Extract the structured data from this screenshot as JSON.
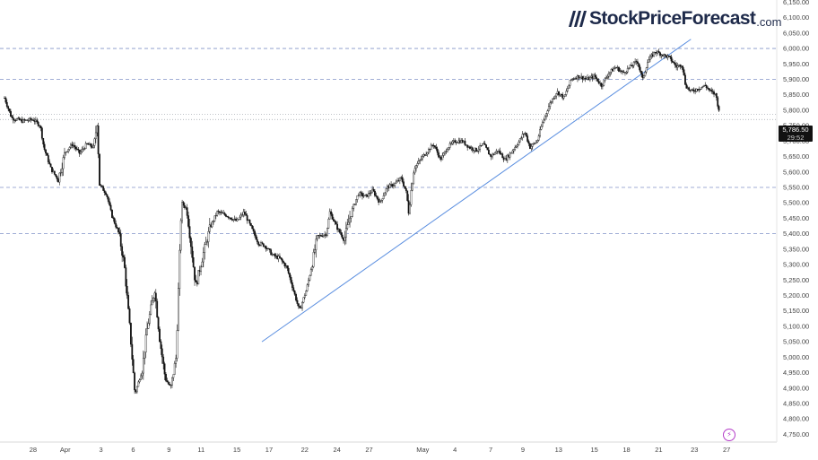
{
  "brand": {
    "name": "StockPriceForecast",
    "tld": ".com"
  },
  "colors": {
    "candle": "#111111",
    "trendline": "#5b8fe0",
    "level_dash": "#8294c8",
    "dotted": "#9aa0a8",
    "price_box": "#111111",
    "accent_icon": "#b43cc8"
  },
  "icons": {
    "logo": "bar-slashes-icon",
    "bolt": "lightning-icon"
  },
  "current_price": {
    "label": "5,786.50",
    "countdown": "29:52"
  },
  "chart_data": {
    "type": "candlestick",
    "title": "",
    "ylim": [
      4725,
      6175
    ],
    "y_ticks": [
      "6,150.00",
      "6,100.00",
      "6,050.00",
      "6,000.00",
      "5,950.00",
      "5,900.00",
      "5,850.00",
      "5,800.00",
      "5,750.00",
      "5,700.00",
      "5,650.00",
      "5,600.00",
      "5,550.00",
      "5,500.00",
      "5,450.00",
      "5,400.00",
      "5,350.00",
      "5,300.00",
      "5,250.00",
      "5,200.00",
      "5,150.00",
      "5,100.00",
      "5,050.00",
      "5,000.00",
      "4,950.00",
      "4,900.00",
      "4,850.00",
      "4,800.00",
      "4,750.00"
    ],
    "x_ticks": [
      {
        "label": "28",
        "t": 0.8
      },
      {
        "label": "Apr",
        "t": 1.7
      },
      {
        "label": "3",
        "t": 2.7
      },
      {
        "label": "6",
        "t": 3.6
      },
      {
        "label": "9",
        "t": 4.6
      },
      {
        "label": "11",
        "t": 5.5
      },
      {
        "label": "15",
        "t": 6.5
      },
      {
        "label": "17",
        "t": 7.4
      },
      {
        "label": "22",
        "t": 8.4
      },
      {
        "label": "24",
        "t": 9.3
      },
      {
        "label": "27",
        "t": 10.2
      },
      {
        "label": "May",
        "t": 11.7
      },
      {
        "label": "4",
        "t": 12.6
      },
      {
        "label": "7",
        "t": 13.6
      },
      {
        "label": "9",
        "t": 14.5
      },
      {
        "label": "13",
        "t": 15.5
      },
      {
        "label": "15",
        "t": 16.5
      },
      {
        "label": "18",
        "t": 17.4
      },
      {
        "label": "21",
        "t": 18.3
      },
      {
        "label": "23",
        "t": 19.3
      },
      {
        "label": "27",
        "t": 20.2
      }
    ],
    "t_range": [
      -0.1,
      21.4
    ],
    "horizontal_levels": [
      6000,
      5900,
      5550,
      5400
    ],
    "dotted_levels": [
      5786.5,
      5770
    ],
    "trendline": {
      "from": {
        "t": 7.2,
        "y": 5050
      },
      "to": {
        "t": 19.2,
        "y": 6030
      }
    },
    "price_path": [
      {
        "t": 0.0,
        "y": 5840
      },
      {
        "t": 0.2,
        "y": 5775
      },
      {
        "t": 0.5,
        "y": 5765
      },
      {
        "t": 0.8,
        "y": 5770
      },
      {
        "t": 1.0,
        "y": 5750
      },
      {
        "t": 1.1,
        "y": 5680
      },
      {
        "t": 1.3,
        "y": 5610
      },
      {
        "t": 1.5,
        "y": 5575
      },
      {
        "t": 1.7,
        "y": 5665
      },
      {
        "t": 1.9,
        "y": 5690
      },
      {
        "t": 2.1,
        "y": 5660
      },
      {
        "t": 2.3,
        "y": 5690
      },
      {
        "t": 2.5,
        "y": 5680
      },
      {
        "t": 2.6,
        "y": 5770
      },
      {
        "t": 2.65,
        "y": 5560
      },
      {
        "t": 2.85,
        "y": 5530
      },
      {
        "t": 3.0,
        "y": 5460
      },
      {
        "t": 3.2,
        "y": 5400
      },
      {
        "t": 3.35,
        "y": 5300
      },
      {
        "t": 3.5,
        "y": 5100
      },
      {
        "t": 3.65,
        "y": 4880
      },
      {
        "t": 3.85,
        "y": 4960
      },
      {
        "t": 4.0,
        "y": 5100
      },
      {
        "t": 4.2,
        "y": 5220
      },
      {
        "t": 4.35,
        "y": 5050
      },
      {
        "t": 4.5,
        "y": 4930
      },
      {
        "t": 4.65,
        "y": 4900
      },
      {
        "t": 4.8,
        "y": 5000
      },
      {
        "t": 4.95,
        "y": 5500
      },
      {
        "t": 5.1,
        "y": 5480
      },
      {
        "t": 5.2,
        "y": 5380
      },
      {
        "t": 5.35,
        "y": 5230
      },
      {
        "t": 5.55,
        "y": 5330
      },
      {
        "t": 5.75,
        "y": 5420
      },
      {
        "t": 5.95,
        "y": 5470
      },
      {
        "t": 6.2,
        "y": 5460
      },
      {
        "t": 6.5,
        "y": 5440
      },
      {
        "t": 6.7,
        "y": 5470
      },
      {
        "t": 6.9,
        "y": 5420
      },
      {
        "t": 7.1,
        "y": 5370
      },
      {
        "t": 7.3,
        "y": 5360
      },
      {
        "t": 7.5,
        "y": 5330
      },
      {
        "t": 7.7,
        "y": 5320
      },
      {
        "t": 7.9,
        "y": 5290
      },
      {
        "t": 8.05,
        "y": 5230
      },
      {
        "t": 8.25,
        "y": 5150
      },
      {
        "t": 8.45,
        "y": 5220
      },
      {
        "t": 8.6,
        "y": 5300
      },
      {
        "t": 8.75,
        "y": 5390
      },
      {
        "t": 9.0,
        "y": 5400
      },
      {
        "t": 9.1,
        "y": 5470
      },
      {
        "t": 9.3,
        "y": 5420
      },
      {
        "t": 9.5,
        "y": 5380
      },
      {
        "t": 9.7,
        "y": 5470
      },
      {
        "t": 9.9,
        "y": 5530
      },
      {
        "t": 10.1,
        "y": 5520
      },
      {
        "t": 10.3,
        "y": 5540
      },
      {
        "t": 10.5,
        "y": 5500
      },
      {
        "t": 10.7,
        "y": 5550
      },
      {
        "t": 10.9,
        "y": 5560
      },
      {
        "t": 11.1,
        "y": 5580
      },
      {
        "t": 11.25,
        "y": 5530
      },
      {
        "t": 11.3,
        "y": 5470
      },
      {
        "t": 11.45,
        "y": 5610
      },
      {
        "t": 11.7,
        "y": 5650
      },
      {
        "t": 12.0,
        "y": 5690
      },
      {
        "t": 12.2,
        "y": 5640
      },
      {
        "t": 12.4,
        "y": 5680
      },
      {
        "t": 12.6,
        "y": 5700
      },
      {
        "t": 12.8,
        "y": 5700
      },
      {
        "t": 13.0,
        "y": 5680
      },
      {
        "t": 13.2,
        "y": 5670
      },
      {
        "t": 13.4,
        "y": 5690
      },
      {
        "t": 13.6,
        "y": 5650
      },
      {
        "t": 13.8,
        "y": 5670
      },
      {
        "t": 14.0,
        "y": 5640
      },
      {
        "t": 14.15,
        "y": 5660
      },
      {
        "t": 14.4,
        "y": 5700
      },
      {
        "t": 14.55,
        "y": 5730
      },
      {
        "t": 14.7,
        "y": 5680
      },
      {
        "t": 14.9,
        "y": 5700
      },
      {
        "t": 15.05,
        "y": 5760
      },
      {
        "t": 15.25,
        "y": 5820
      },
      {
        "t": 15.45,
        "y": 5860
      },
      {
        "t": 15.65,
        "y": 5840
      },
      {
        "t": 15.85,
        "y": 5900
      },
      {
        "t": 16.05,
        "y": 5910
      },
      {
        "t": 16.3,
        "y": 5900
      },
      {
        "t": 16.5,
        "y": 5910
      },
      {
        "t": 16.7,
        "y": 5880
      },
      {
        "t": 16.9,
        "y": 5920
      },
      {
        "t": 17.1,
        "y": 5940
      },
      {
        "t": 17.3,
        "y": 5920
      },
      {
        "t": 17.5,
        "y": 5940
      },
      {
        "t": 17.7,
        "y": 5960
      },
      {
        "t": 17.85,
        "y": 5900
      },
      {
        "t": 18.0,
        "y": 5960
      },
      {
        "t": 18.2,
        "y": 5990
      },
      {
        "t": 18.4,
        "y": 5980
      },
      {
        "t": 18.6,
        "y": 5970
      },
      {
        "t": 18.8,
        "y": 5940
      },
      {
        "t": 18.95,
        "y": 5950
      },
      {
        "t": 19.05,
        "y": 5880
      },
      {
        "t": 19.2,
        "y": 5860
      },
      {
        "t": 19.4,
        "y": 5870
      },
      {
        "t": 19.6,
        "y": 5880
      },
      {
        "t": 19.75,
        "y": 5860
      },
      {
        "t": 19.9,
        "y": 5850
      },
      {
        "t": 20.0,
        "y": 5786.5
      }
    ]
  }
}
